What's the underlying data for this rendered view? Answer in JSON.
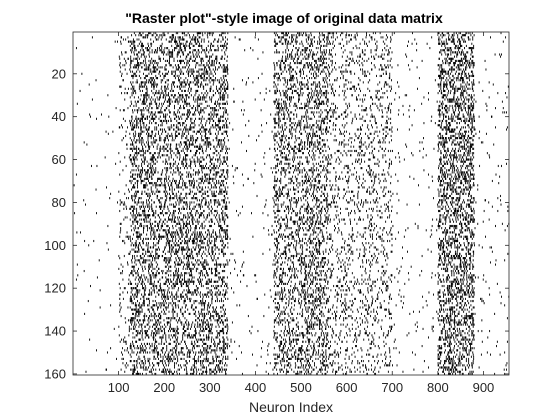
{
  "chart_data": {
    "type": "heatmap",
    "title": "\"Raster plot\"-style image of original data matrix",
    "xlabel": "Neuron Index",
    "ylabel": "",
    "xlim": [
      0,
      956
    ],
    "ylim": [
      160,
      1
    ],
    "y_reversed": true,
    "x_ticks": [
      100,
      200,
      300,
      400,
      500,
      600,
      700,
      800,
      900
    ],
    "y_ticks": [
      20,
      40,
      60,
      80,
      100,
      120,
      140,
      160
    ],
    "grid": false,
    "legend": "none",
    "colors": {
      "spike": "#000000",
      "background": "#ffffff",
      "axis": "#262626"
    },
    "rows": 160,
    "columns": 956,
    "density_profile": [
      {
        "x_range": [
          1,
          100
        ],
        "spike_probability": 0.004
      },
      {
        "x_range": [
          100,
          125
        ],
        "spike_probability": 0.04
      },
      {
        "x_range": [
          125,
          340
        ],
        "spike_probability": 0.16
      },
      {
        "x_range": [
          340,
          440
        ],
        "spike_probability": 0.01
      },
      {
        "x_range": [
          440,
          560
        ],
        "spike_probability": 0.15
      },
      {
        "x_range": [
          560,
          700
        ],
        "spike_probability": 0.07
      },
      {
        "x_range": [
          700,
          800
        ],
        "spike_probability": 0.01
      },
      {
        "x_range": [
          800,
          880
        ],
        "spike_probability": 0.2
      },
      {
        "x_range": [
          880,
          956
        ],
        "spike_probability": 0.01
      }
    ]
  }
}
